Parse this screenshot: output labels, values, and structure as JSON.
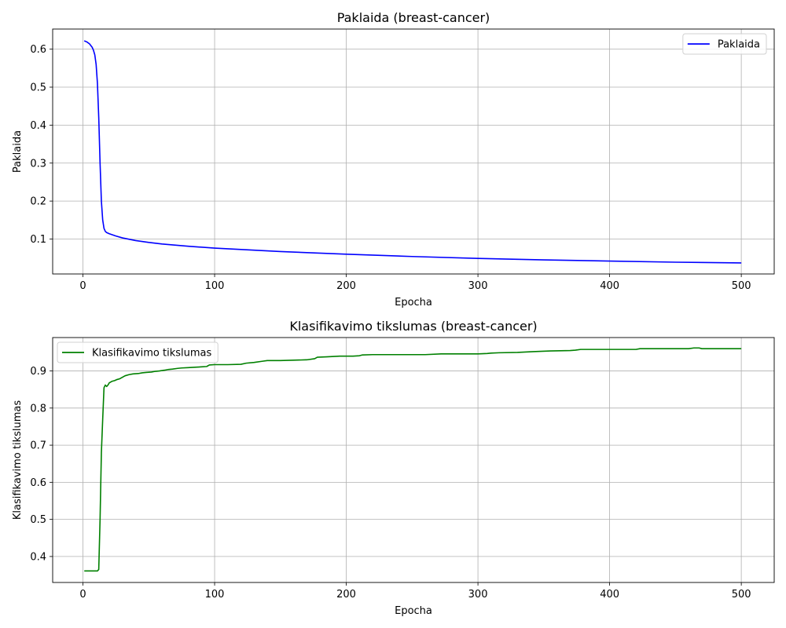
{
  "chart_data": [
    {
      "type": "line",
      "title": "Paklaida (breast-cancer)",
      "xlabel": "Epocha",
      "ylabel": "Paklaida",
      "xlim": [
        -23,
        525
      ],
      "ylim": [
        0.008,
        0.653
      ],
      "xticks": [
        0,
        100,
        200,
        300,
        400,
        500
      ],
      "yticks": [
        0.1,
        0.2,
        0.3,
        0.4,
        0.5,
        0.6
      ],
      "grid": true,
      "legend": "top-right",
      "series": [
        {
          "name": "Paklaida",
          "color": "#0000ff",
          "x": [
            1,
            3,
            5,
            7,
            8,
            9,
            10,
            11,
            12,
            13,
            14,
            15,
            16,
            17,
            18,
            20,
            25,
            30,
            40,
            50,
            60,
            80,
            100,
            150,
            200,
            250,
            300,
            350,
            400,
            450,
            500
          ],
          "y": [
            0.622,
            0.619,
            0.614,
            0.605,
            0.597,
            0.585,
            0.56,
            0.51,
            0.42,
            0.3,
            0.2,
            0.15,
            0.128,
            0.12,
            0.117,
            0.114,
            0.108,
            0.103,
            0.096,
            0.091,
            0.087,
            0.081,
            0.076,
            0.067,
            0.06,
            0.054,
            0.049,
            0.045,
            0.042,
            0.039,
            0.037
          ]
        }
      ]
    },
    {
      "type": "line",
      "title": "Klasifikavimo tikslumas (breast-cancer)",
      "xlabel": "Epocha",
      "ylabel": "Klasifikavimo tikslumas",
      "xlim": [
        -23,
        525
      ],
      "ylim": [
        0.33,
        0.99
      ],
      "xticks": [
        0,
        100,
        200,
        300,
        400,
        500
      ],
      "yticks": [
        0.4,
        0.5,
        0.6,
        0.7,
        0.8,
        0.9
      ],
      "grid": true,
      "legend": "top-left",
      "series": [
        {
          "name": "Klasifikavimo tikslumas",
          "color": "#008000",
          "x": [
            1,
            11,
            12,
            13,
            14,
            15,
            16,
            17,
            18,
            19,
            20,
            22,
            24,
            26,
            28,
            30,
            32,
            35,
            38,
            42,
            45,
            48,
            52,
            55,
            58,
            62,
            65,
            68,
            72,
            75,
            80,
            85,
            90,
            94,
            96,
            100,
            110,
            120,
            124,
            130,
            136,
            140,
            150,
            160,
            170,
            176,
            178,
            185,
            195,
            205,
            210,
            212,
            220,
            240,
            260,
            272,
            280,
            300,
            307,
            310,
            316,
            330,
            342,
            355,
            370,
            374,
            378,
            400,
            420,
            423,
            440,
            460,
            464,
            468,
            470,
            480,
            500
          ],
          "y": [
            0.361,
            0.361,
            0.365,
            0.5,
            0.68,
            0.77,
            0.855,
            0.862,
            0.858,
            0.862,
            0.868,
            0.872,
            0.874,
            0.877,
            0.879,
            0.883,
            0.887,
            0.89,
            0.892,
            0.893,
            0.895,
            0.896,
            0.897,
            0.899,
            0.9,
            0.902,
            0.904,
            0.905,
            0.907,
            0.908,
            0.909,
            0.91,
            0.911,
            0.912,
            0.916,
            0.917,
            0.917,
            0.918,
            0.921,
            0.923,
            0.926,
            0.928,
            0.928,
            0.929,
            0.93,
            0.933,
            0.937,
            0.938,
            0.94,
            0.94,
            0.941,
            0.943,
            0.944,
            0.944,
            0.944,
            0.946,
            0.946,
            0.946,
            0.947,
            0.948,
            0.949,
            0.95,
            0.952,
            0.954,
            0.955,
            0.956,
            0.958,
            0.958,
            0.958,
            0.96,
            0.96,
            0.96,
            0.962,
            0.962,
            0.96,
            0.96,
            0.96
          ]
        }
      ]
    }
  ]
}
